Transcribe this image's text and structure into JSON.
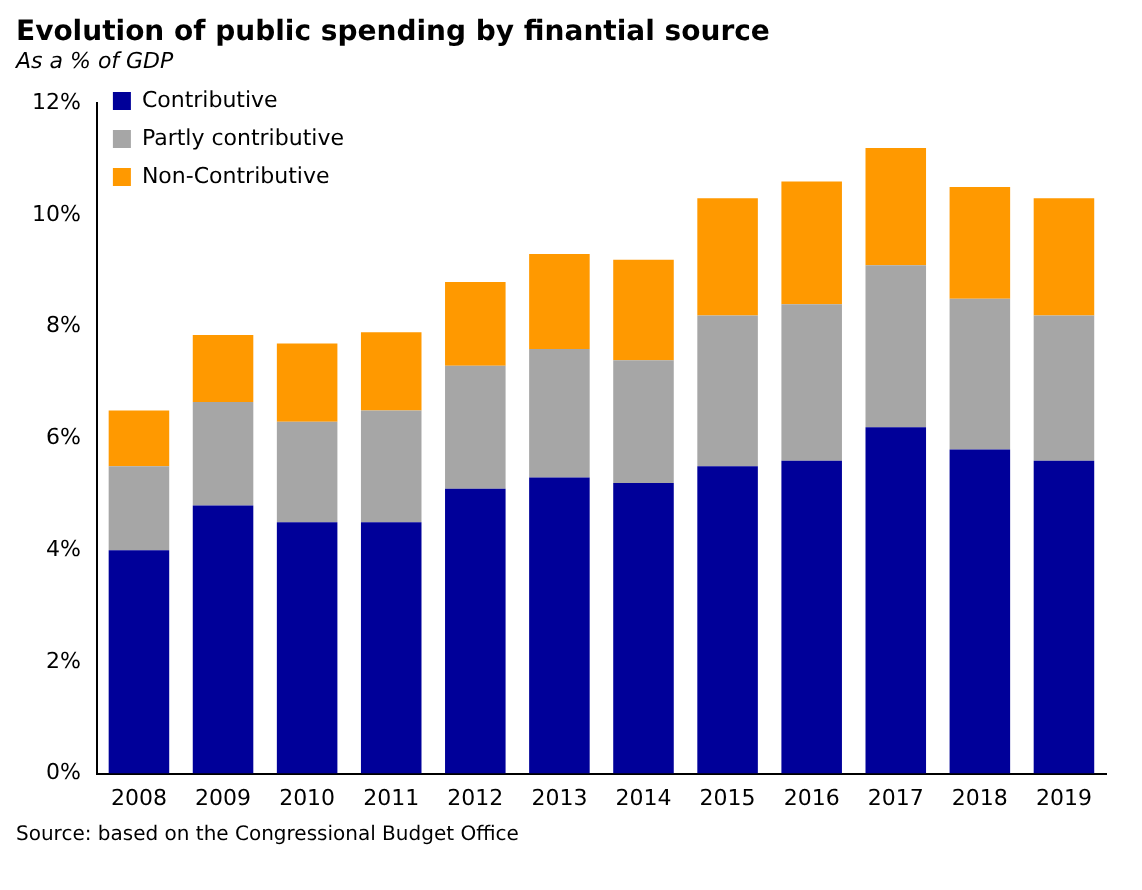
{
  "chart_data": {
    "type": "bar",
    "title": "Evolution of public spending by finantial source",
    "subtitle": "As a % of GDP",
    "annotations": [
      "Source: based on the Congressional Budget Office"
    ],
    "categories": [
      "2008",
      "2009",
      "2010",
      "2011",
      "2012",
      "2013",
      "2014",
      "2015",
      "2016",
      "2017",
      "2018",
      "2019"
    ],
    "stacked": true,
    "legend": "top left",
    "grid": false,
    "ylim": [
      0,
      12
    ],
    "yticks": [
      {
        "value": 0,
        "label": "0%"
      },
      {
        "value": 2,
        "label": "2%"
      },
      {
        "value": 4,
        "label": "4%"
      },
      {
        "value": 6,
        "label": "6%"
      },
      {
        "value": 8,
        "label": "8%"
      },
      {
        "value": 10,
        "label": "10%"
      },
      {
        "value": 12,
        "label": "12%"
      }
    ],
    "series": [
      {
        "name": "Contributive",
        "color": "#000099",
        "values": [
          4.0,
          4.8,
          4.5,
          4.5,
          5.1,
          5.3,
          5.2,
          5.5,
          5.6,
          6.2,
          5.8,
          5.6
        ]
      },
      {
        "name": "Partly contributive",
        "color": "#a6a6a6",
        "values": [
          1.5,
          1.85,
          1.8,
          2.0,
          2.2,
          2.3,
          2.2,
          2.7,
          2.8,
          2.9,
          2.7,
          2.6
        ]
      },
      {
        "name": "Non-Contributive",
        "color": "#ff9900",
        "values": [
          1.0,
          1.2,
          1.4,
          1.4,
          1.5,
          1.7,
          1.8,
          2.1,
          2.2,
          2.1,
          2.0,
          2.1
        ]
      }
    ]
  }
}
